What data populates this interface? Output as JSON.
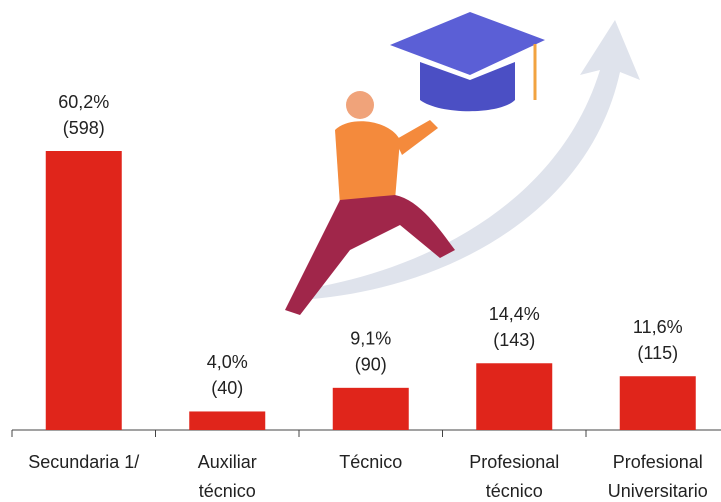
{
  "chart_data": {
    "type": "bar",
    "color": "#e0251b",
    "categories": [
      [
        "Secundaria 1/"
      ],
      [
        "Auxiliar",
        "técnico"
      ],
      [
        "Técnico"
      ],
      [
        "Profesional",
        "técnico"
      ],
      [
        "Profesional",
        "Universitario"
      ]
    ],
    "values": [
      60.2,
      4.0,
      9.1,
      14.4,
      11.6
    ],
    "value_labels": [
      "60,2%",
      "4,0%",
      "9,1%",
      "14,4%",
      "11,6%"
    ],
    "counts": [
      598,
      40,
      90,
      143,
      115
    ],
    "count_labels": [
      "(598)",
      "(40)",
      "(90)",
      "(143)",
      "(115)"
    ]
  }
}
